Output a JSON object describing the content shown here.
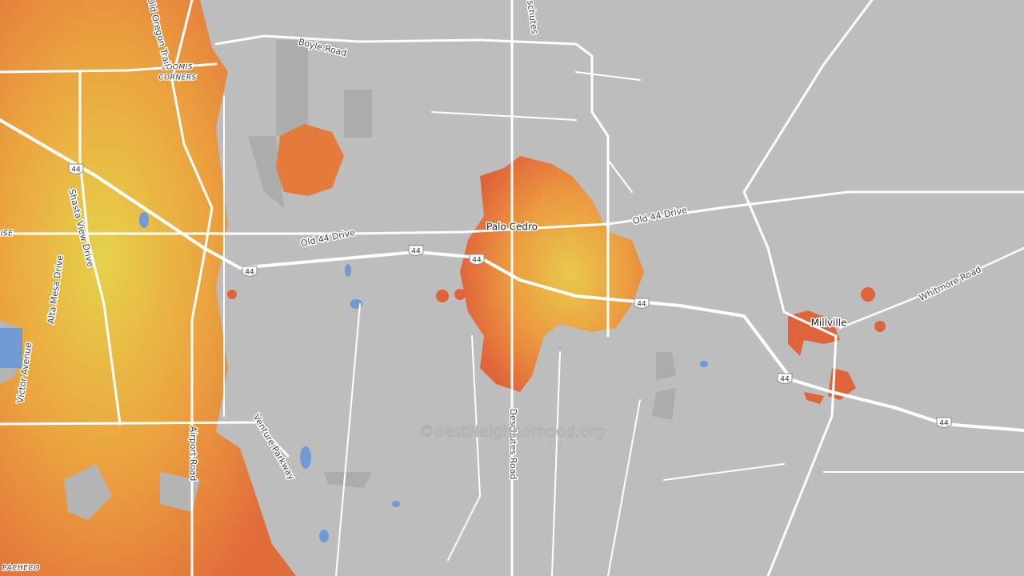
{
  "map": {
    "places": [
      "LOOMIS",
      "CORNERS",
      "Palo Cedro",
      "Millville",
      "PACHECO",
      "RISE"
    ],
    "roads": [
      "Boyle Road",
      "Old Oregon Trail",
      "Deschutes",
      "Shasta View Drive",
      "Alta Mesa Drive",
      "Victor Avenue",
      "Old 44 Drive",
      "Old 44 Drive",
      "Airport Road",
      "Venture Parkway",
      "Deschutes Road",
      "Whitmore Road"
    ],
    "route_shields": [
      "44",
      "44",
      "44",
      "44",
      "44",
      "44",
      "44"
    ],
    "watermark": "©BestNeighborhood.org"
  }
}
